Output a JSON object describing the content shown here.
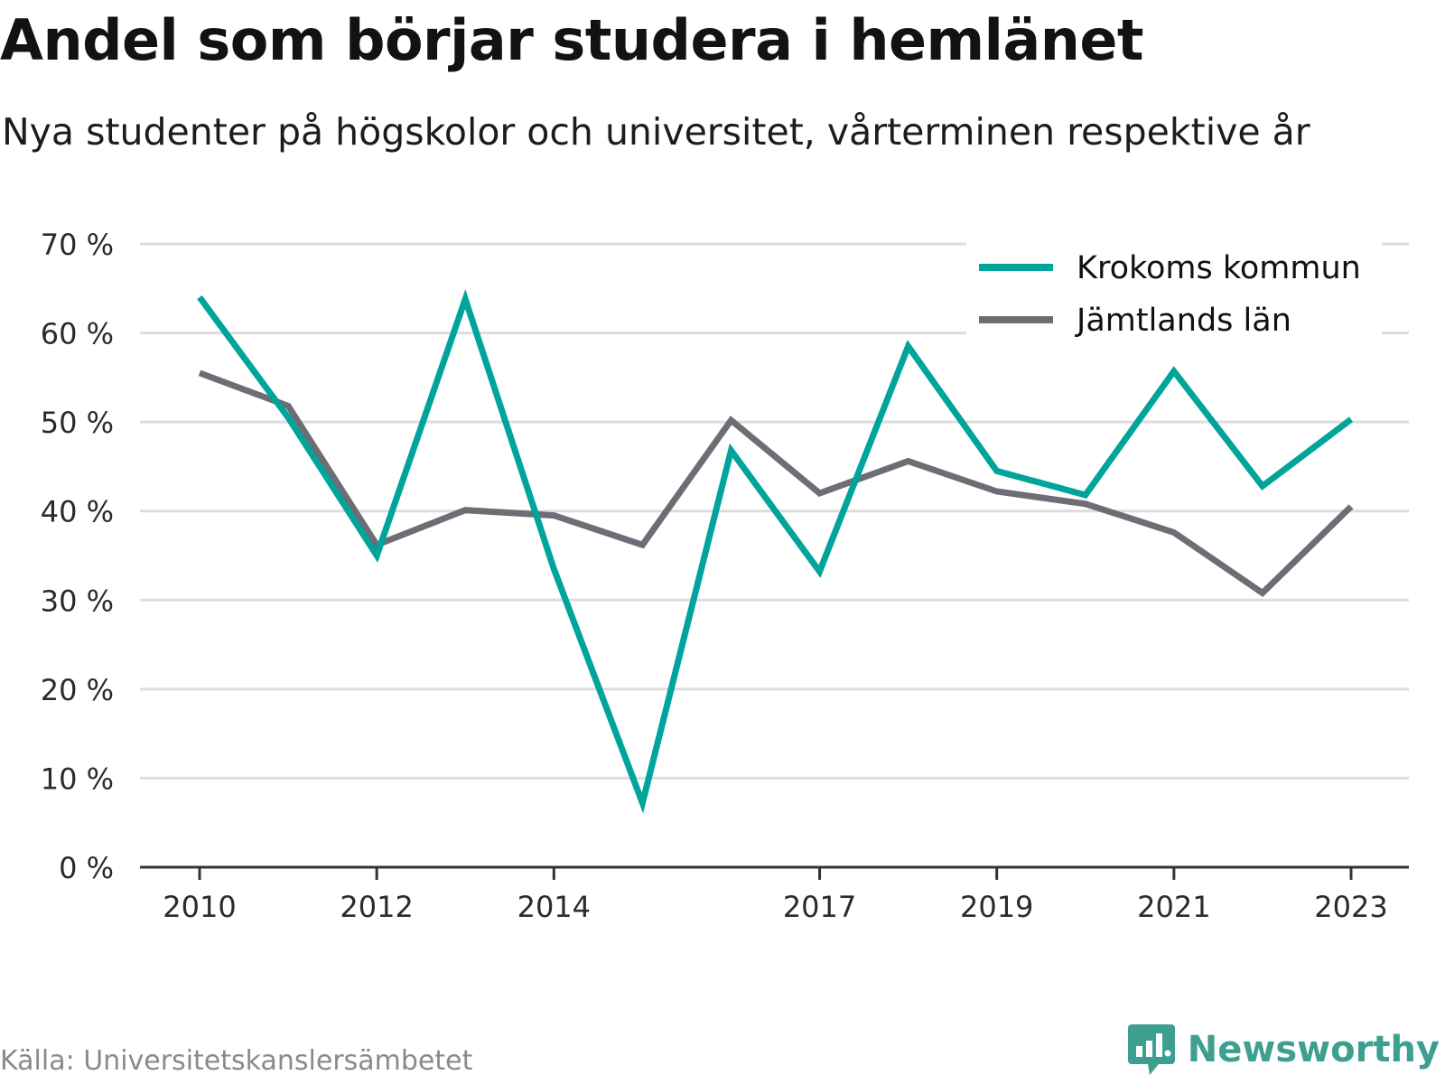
{
  "title": "Andel som börjar studera i hemlänet",
  "subtitle": "Nya studenter på högskolor och universitet, vårterminen respektive år",
  "source": "Källa: Universitetskanslersämbetet",
  "brand": "Newsworthy",
  "colors": {
    "krokom": "#00a49a",
    "jamtland": "#6e6d75",
    "grid": "#dddddd",
    "axis": "#333333",
    "brand": "#3d9f8f"
  },
  "chart_data": {
    "type": "line",
    "x": [
      2010,
      2011,
      2012,
      2013,
      2014,
      2015,
      2016,
      2017,
      2018,
      2019,
      2020,
      2021,
      2022,
      2023
    ],
    "x_tick_labels": [
      "2010",
      "2012",
      "2014",
      "2017",
      "2019",
      "2021",
      "2023"
    ],
    "y_tick_labels": [
      "0 %",
      "10 %",
      "20 %",
      "30 %",
      "40 %",
      "50 %",
      "60 %",
      "70 %"
    ],
    "ylim": [
      0,
      70
    ],
    "grid": true,
    "legend_position": "top-right",
    "series": [
      {
        "name": "Krokoms kommun",
        "color": "#00a49a",
        "values": [
          64,
          50.5,
          35,
          63.8,
          33.5,
          7.2,
          46.8,
          33.2,
          58.5,
          44.5,
          41.8,
          55.7,
          42.8,
          50.3
        ]
      },
      {
        "name": "Jämtlands län",
        "color": "#6e6d75",
        "values": [
          55.5,
          51.8,
          36.2,
          40.1,
          39.5,
          36.2,
          50.2,
          42,
          45.6,
          42.2,
          40.8,
          37.6,
          30.8,
          40.5
        ]
      }
    ]
  }
}
